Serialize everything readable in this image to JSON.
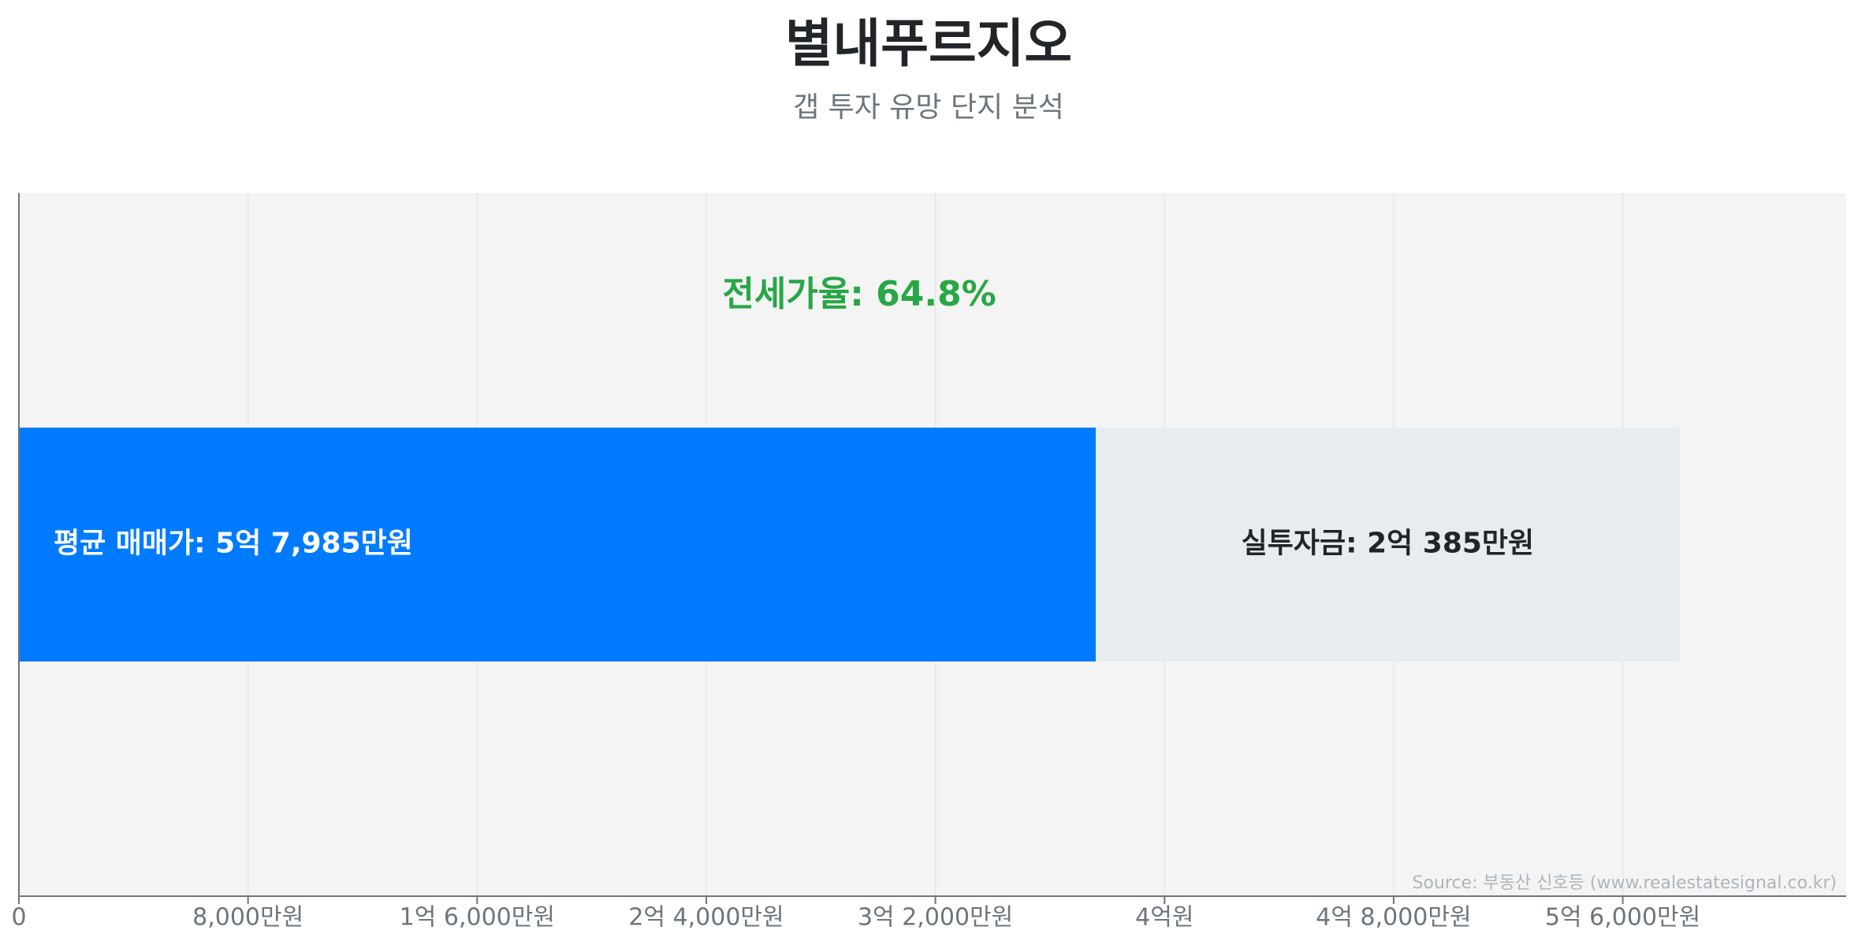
{
  "chart_data": {
    "type": "bar",
    "orientation": "horizontal",
    "stacked": true,
    "title": "별내푸르지오",
    "subtitle": "갭 투자 유망 단지 분석",
    "unit": "만원",
    "series": [
      {
        "key": "jeonse",
        "value": 37600,
        "color": "#007bff",
        "label": "평균 매매가: 5억 7,985만원",
        "label_color": "#ffffff",
        "label_align": "left"
      },
      {
        "key": "gap",
        "value": 20385,
        "color": "#e9ecef",
        "label": "실투자금: 2억 385만원",
        "label_color": "#212529",
        "label_align": "center"
      }
    ],
    "annotation": {
      "text": "전세가율: 64.8%",
      "color": "#28a745"
    },
    "xlim": [
      0,
      63800
    ],
    "ticks": [
      {
        "value": 0,
        "label": "0"
      },
      {
        "value": 8000,
        "label": "8,000만원"
      },
      {
        "value": 16000,
        "label": "1억 6,000만원"
      },
      {
        "value": 24000,
        "label": "2억 4,000만원"
      },
      {
        "value": 32000,
        "label": "3억 2,000만원"
      },
      {
        "value": 40000,
        "label": "4억원"
      },
      {
        "value": 48000,
        "label": "4억 8,000만원"
      },
      {
        "value": 56000,
        "label": "5억 6,000만원"
      }
    ],
    "grid": true,
    "plot_background": "#f4f4f4",
    "source": "Source: 부동산 신호등 (www.realestatesignal.co.kr)"
  }
}
